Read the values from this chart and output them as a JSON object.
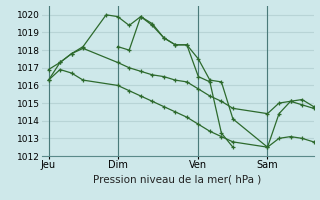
{
  "background_color": "#cee8ea",
  "grid_color": "#b8d4d6",
  "line_color": "#2d6a2d",
  "title": "Pression niveau de la mer( hPa )",
  "ylim": [
    1012,
    1020.5
  ],
  "yticks": [
    1012,
    1013,
    1014,
    1015,
    1016,
    1017,
    1018,
    1019,
    1020
  ],
  "day_labels": [
    "Jeu",
    "Dim",
    "Ven",
    "Sam"
  ],
  "day_positions": [
    0.0,
    3.0,
    6.5,
    9.5
  ],
  "xlim": [
    -0.3,
    11.5
  ],
  "series1_x": [
    0.0,
    0.5,
    1.0,
    1.5,
    2.5,
    3.0,
    3.5,
    4.0,
    4.5,
    5.0,
    5.5,
    6.0,
    6.5,
    7.0,
    7.5,
    8.0,
    9.5,
    10.0,
    10.5,
    11.0,
    11.5
  ],
  "series1_y": [
    1016.9,
    1017.3,
    1017.8,
    1018.2,
    1020.0,
    1019.9,
    1019.4,
    1019.9,
    1019.5,
    1018.7,
    1018.3,
    1018.3,
    1017.5,
    1016.3,
    1016.2,
    1014.1,
    1012.5,
    1014.4,
    1015.1,
    1015.2,
    1014.8
  ],
  "series2_x": [
    0.0,
    0.5,
    1.0,
    1.5,
    3.0,
    3.5,
    4.0,
    4.5,
    5.0,
    5.5,
    6.0,
    6.5,
    7.0,
    7.5,
    8.0,
    9.5,
    10.0,
    10.5,
    11.0,
    11.5
  ],
  "series2_y": [
    1016.3,
    1017.3,
    1017.8,
    1018.1,
    1017.3,
    1017.0,
    1016.8,
    1016.6,
    1016.5,
    1016.3,
    1016.2,
    1015.8,
    1015.4,
    1015.1,
    1014.7,
    1014.4,
    1015.0,
    1015.1,
    1014.9,
    1014.7
  ],
  "series3_x": [
    0.0,
    0.5,
    1.0,
    1.5,
    3.0,
    3.5,
    4.0,
    4.5,
    5.0,
    5.5,
    6.0,
    6.5,
    7.0,
    7.5,
    8.0,
    9.5,
    10.0,
    10.5,
    11.0,
    11.5
  ],
  "series3_y": [
    1016.3,
    1016.9,
    1016.7,
    1016.3,
    1016.0,
    1015.7,
    1015.4,
    1015.1,
    1014.8,
    1014.5,
    1014.2,
    1013.8,
    1013.4,
    1013.1,
    1012.8,
    1012.5,
    1013.0,
    1013.1,
    1013.0,
    1012.8
  ],
  "series4_x": [
    3.0,
    3.5,
    4.0,
    4.5,
    5.0,
    5.5,
    6.0,
    6.5,
    7.0,
    7.5,
    8.0
  ],
  "series4_y": [
    1018.2,
    1018.0,
    1019.9,
    1019.4,
    1018.7,
    1018.3,
    1018.3,
    1016.5,
    1016.2,
    1013.3,
    1012.5
  ]
}
